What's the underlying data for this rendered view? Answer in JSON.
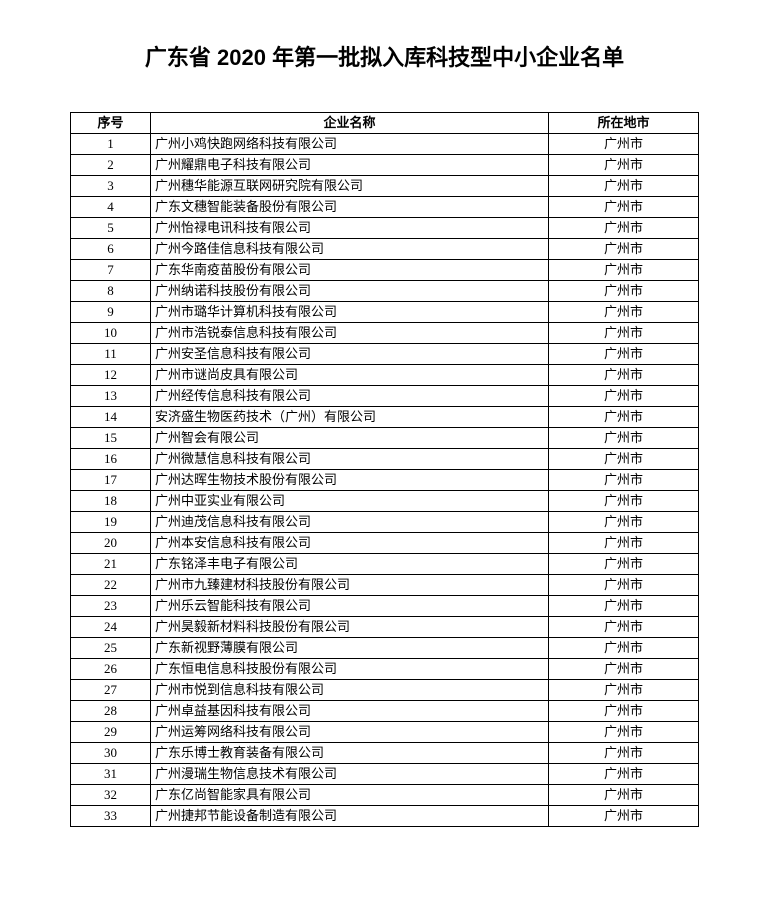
{
  "title": "广东省 2020 年第一批拟入库科技型中小企业名单",
  "columns": [
    "序号",
    "企业名称",
    "所在地市"
  ],
  "rows": [
    {
      "seq": "1",
      "name": "广州小鸡快跑网络科技有限公司",
      "city": "广州市"
    },
    {
      "seq": "2",
      "name": "广州耀鼎电子科技有限公司",
      "city": "广州市"
    },
    {
      "seq": "3",
      "name": "广州穗华能源互联网研究院有限公司",
      "city": "广州市"
    },
    {
      "seq": "4",
      "name": "广东文穗智能装备股份有限公司",
      "city": "广州市"
    },
    {
      "seq": "5",
      "name": "广州怡禄电讯科技有限公司",
      "city": "广州市"
    },
    {
      "seq": "6",
      "name": "广州今路佳信息科技有限公司",
      "city": "广州市"
    },
    {
      "seq": "7",
      "name": "广东华南疫苗股份有限公司",
      "city": "广州市"
    },
    {
      "seq": "8",
      "name": "广州纳诺科技股份有限公司",
      "city": "广州市"
    },
    {
      "seq": "9",
      "name": "广州市璐华计算机科技有限公司",
      "city": "广州市"
    },
    {
      "seq": "10",
      "name": "广州市浩锐泰信息科技有限公司",
      "city": "广州市"
    },
    {
      "seq": "11",
      "name": "广州安圣信息科技有限公司",
      "city": "广州市"
    },
    {
      "seq": "12",
      "name": "广州市谜尚皮具有限公司",
      "city": "广州市"
    },
    {
      "seq": "13",
      "name": "广州经传信息科技有限公司",
      "city": "广州市"
    },
    {
      "seq": "14",
      "name": "安济盛生物医药技术（广州）有限公司",
      "city": "广州市"
    },
    {
      "seq": "15",
      "name": "广州智会有限公司",
      "city": "广州市"
    },
    {
      "seq": "16",
      "name": "广州微慧信息科技有限公司",
      "city": "广州市"
    },
    {
      "seq": "17",
      "name": "广州达晖生物技术股份有限公司",
      "city": "广州市"
    },
    {
      "seq": "18",
      "name": "广州中亚实业有限公司",
      "city": "广州市"
    },
    {
      "seq": "19",
      "name": "广州迪茂信息科技有限公司",
      "city": "广州市"
    },
    {
      "seq": "20",
      "name": "广州本安信息科技有限公司",
      "city": "广州市"
    },
    {
      "seq": "21",
      "name": "广东铭泽丰电子有限公司",
      "city": "广州市"
    },
    {
      "seq": "22",
      "name": "广州市九臻建材科技股份有限公司",
      "city": "广州市"
    },
    {
      "seq": "23",
      "name": "广州乐云智能科技有限公司",
      "city": "广州市"
    },
    {
      "seq": "24",
      "name": "广州昊毅新材料科技股份有限公司",
      "city": "广州市"
    },
    {
      "seq": "25",
      "name": "广东新视野薄膜有限公司",
      "city": "广州市"
    },
    {
      "seq": "26",
      "name": "广东恒电信息科技股份有限公司",
      "city": "广州市"
    },
    {
      "seq": "27",
      "name": "广州市悦到信息科技有限公司",
      "city": "广州市"
    },
    {
      "seq": "28",
      "name": "广州卓益基因科技有限公司",
      "city": "广州市"
    },
    {
      "seq": "29",
      "name": "广州运筹网络科技有限公司",
      "city": "广州市"
    },
    {
      "seq": "30",
      "name": "广东乐博士教育装备有限公司",
      "city": "广州市"
    },
    {
      "seq": "31",
      "name": "广州漫瑞生物信息技术有限公司",
      "city": "广州市"
    },
    {
      "seq": "32",
      "name": "广东亿尚智能家具有限公司",
      "city": "广州市"
    },
    {
      "seq": "33",
      "name": "广州捷邦节能设备制造有限公司",
      "city": "广州市"
    }
  ]
}
